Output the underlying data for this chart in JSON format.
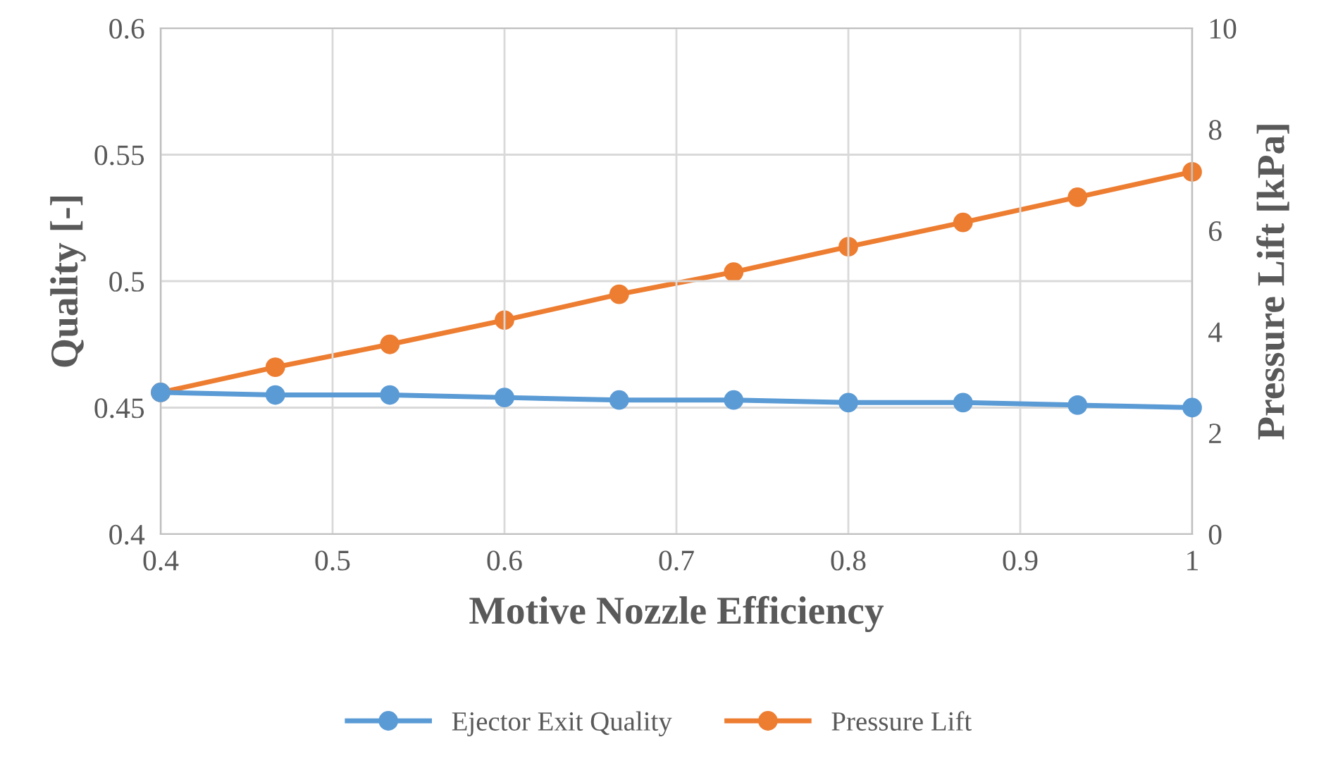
{
  "chart_data": {
    "type": "line",
    "xlabel": "Motive Nozzle Efficiency",
    "ylabel": "Quality [-]",
    "y2label": "Pressure Lift [kPa]",
    "x": [
      0.4,
      0.4667,
      0.5333,
      0.6,
      0.6667,
      0.7333,
      0.8,
      0.8667,
      0.9333,
      1.0
    ],
    "series": [
      {
        "name": "Ejector Exit Quality",
        "color": "#5b9bd5",
        "values": [
          0.456,
          0.455,
          0.455,
          0.454,
          0.453,
          0.453,
          0.452,
          0.452,
          0.451,
          0.45
        ]
      },
      {
        "name": "Pressure Lift",
        "color": "#ed7d31",
        "axis": "y2",
        "values": [
          2.8,
          3.3,
          3.75,
          4.23,
          4.74,
          5.18,
          5.68,
          6.16,
          6.66,
          7.16
        ]
      }
    ],
    "xlim": [
      0.4,
      1
    ],
    "xticks": [
      0.4,
      0.5,
      0.6,
      0.7,
      0.8,
      0.9,
      1
    ],
    "ylim": [
      0.4,
      0.6
    ],
    "yticks": [
      0.4,
      0.45,
      0.5,
      0.55,
      0.6
    ],
    "y2lim": [
      0,
      10
    ],
    "y2ticks": [
      0,
      2,
      4,
      6,
      8,
      10
    ],
    "grid": true,
    "legend": "bottom",
    "marker": "circle",
    "line_style": "solid"
  }
}
